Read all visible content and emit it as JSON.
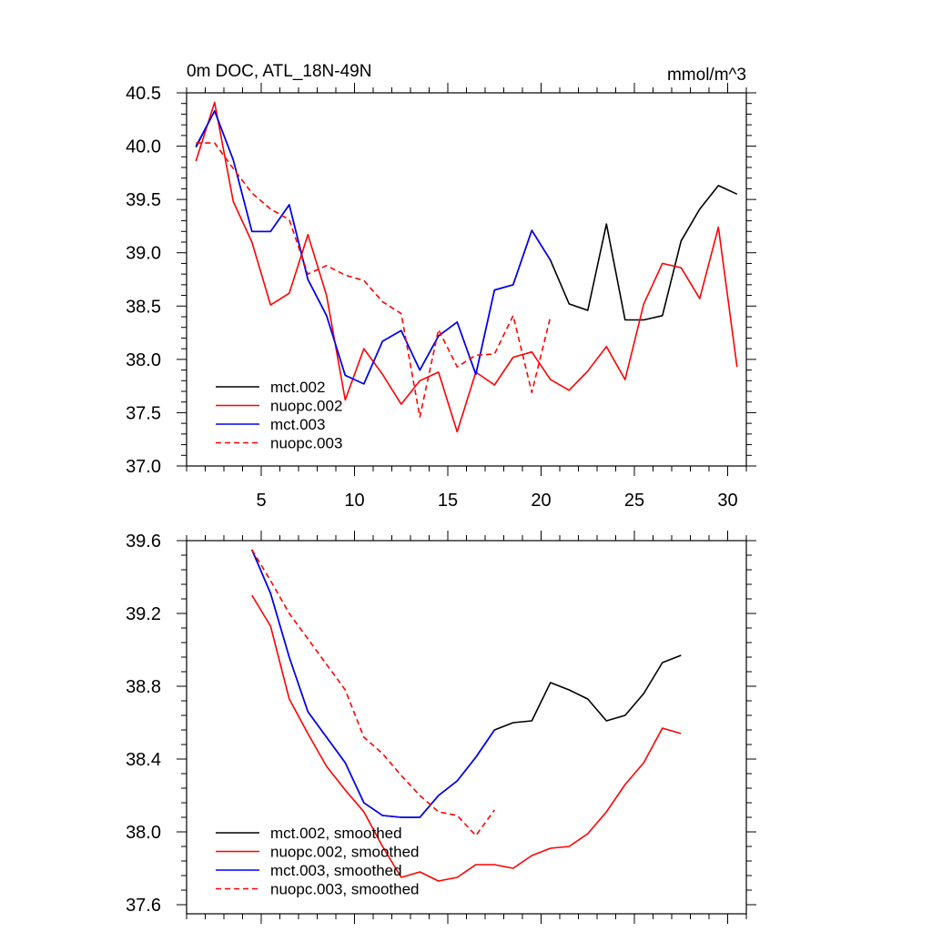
{
  "colors": {
    "mct002": "#000000",
    "nuopc002": "#ff0000",
    "mct003": "#0000ff",
    "nuopc003": "#ff0000"
  },
  "chart_data": [
    {
      "type": "line",
      "title": "0m DOC, ATL_18N-49N",
      "units": "mmol/m^3",
      "xlim": [
        1,
        31
      ],
      "ylim": [
        37.0,
        40.5
      ],
      "xticks": [
        5,
        10,
        15,
        20,
        25,
        30
      ],
      "xtick_labels": [
        "5",
        "10",
        "15",
        "20",
        "25",
        "30"
      ],
      "yticks": [
        37.0,
        37.5,
        38.0,
        38.5,
        39.0,
        39.5,
        40.0,
        40.5
      ],
      "ytick_labels": [
        "37.0",
        "37.5",
        "38.0",
        "38.5",
        "39.0",
        "39.5",
        "40.0",
        "40.5"
      ],
      "legend_position": "bottom-left",
      "series": [
        {
          "name": "mct.002",
          "color": "#000000",
          "dash": false,
          "x": [
            1.5,
            2.5,
            3.5,
            4.5,
            5.5,
            6.5,
            7.5,
            8.5,
            9.5,
            10.5,
            11.5,
            12.5,
            13.5,
            14.5,
            15.5,
            16.5,
            17.5,
            18.5,
            19.5,
            20.5,
            21.5,
            22.5,
            23.5,
            24.5,
            25.5,
            26.5,
            27.5,
            28.5,
            29.5,
            30.5
          ],
          "values": [
            39.99,
            40.33,
            39.87,
            39.2,
            39.2,
            39.45,
            38.75,
            38.41,
            37.85,
            37.77,
            38.17,
            38.27,
            37.9,
            38.22,
            38.35,
            37.86,
            38.65,
            38.7,
            39.21,
            38.93,
            38.52,
            38.46,
            39.27,
            38.37,
            38.37,
            38.41,
            39.11,
            39.41,
            39.63,
            39.55
          ]
        },
        {
          "name": "nuopc.002",
          "color": "#ff0000",
          "dash": false,
          "x": [
            1.5,
            2.5,
            3.5,
            4.5,
            5.5,
            6.5,
            7.5,
            8.5,
            9.5,
            10.5,
            11.5,
            12.5,
            13.5,
            14.5,
            15.5,
            16.5,
            17.5,
            18.5,
            19.5,
            20.5,
            21.5,
            22.5,
            23.5,
            24.5,
            25.5,
            26.5,
            27.5,
            28.5,
            29.5,
            30.5
          ],
          "values": [
            39.86,
            40.41,
            39.48,
            39.1,
            38.51,
            38.62,
            39.17,
            38.6,
            37.62,
            38.1,
            37.86,
            37.58,
            37.8,
            37.88,
            37.32,
            37.88,
            37.76,
            38.02,
            38.07,
            37.81,
            37.71,
            37.89,
            38.12,
            37.81,
            38.52,
            38.9,
            38.86,
            38.57,
            39.24,
            37.93
          ]
        },
        {
          "name": "mct.003",
          "color": "#0000ff",
          "dash": false,
          "x": [
            1.5,
            2.5,
            3.5,
            4.5,
            5.5,
            6.5,
            7.5,
            8.5,
            9.5,
            10.5,
            11.5,
            12.5,
            13.5,
            14.5,
            15.5,
            16.5,
            17.5,
            18.5,
            19.5,
            20.5
          ],
          "values": [
            40.0,
            40.33,
            39.87,
            39.2,
            39.2,
            39.45,
            38.75,
            38.41,
            37.85,
            37.77,
            38.17,
            38.27,
            37.9,
            38.22,
            38.35,
            37.86,
            38.65,
            38.7,
            39.21,
            38.93
          ]
        },
        {
          "name": "nuopc.003",
          "color": "#ff0000",
          "dash": true,
          "x": [
            1.5,
            2.5,
            3.5,
            4.5,
            5.5,
            6.5,
            7.5,
            8.5,
            9.5,
            10.5,
            11.5,
            12.5,
            13.5,
            14.5,
            15.5,
            16.5,
            17.5,
            18.5,
            19.5,
            20.5
          ],
          "values": [
            40.03,
            40.03,
            39.79,
            39.56,
            39.41,
            39.31,
            38.8,
            38.88,
            38.79,
            38.74,
            38.54,
            38.43,
            37.46,
            38.28,
            37.93,
            38.04,
            38.05,
            38.41,
            37.69,
            38.4
          ]
        }
      ]
    },
    {
      "type": "line",
      "title": "",
      "xlim": [
        1,
        31
      ],
      "ylim": [
        37.55,
        39.6
      ],
      "xticks": [
        5,
        10,
        15,
        20,
        25,
        30
      ],
      "xtick_labels": [],
      "yticks": [
        37.6,
        38.0,
        38.4,
        38.8,
        39.2,
        39.6
      ],
      "ytick_labels": [
        "37.6",
        "38.0",
        "38.4",
        "38.8",
        "39.2",
        "39.6"
      ],
      "legend_position": "bottom-left",
      "series": [
        {
          "name": "mct.002, smoothed",
          "color": "#000000",
          "dash": false,
          "x": [
            4.5,
            5.5,
            6.5,
            7.5,
            8.5,
            9.5,
            10.5,
            11.5,
            12.5,
            13.5,
            14.5,
            15.5,
            16.5,
            17.5,
            18.5,
            19.5,
            20.5,
            21.5,
            22.5,
            23.5,
            24.5,
            25.5,
            26.5,
            27.5
          ],
          "values": [
            39.55,
            39.31,
            38.96,
            38.66,
            38.52,
            38.38,
            38.16,
            38.09,
            38.08,
            38.08,
            38.2,
            38.28,
            38.41,
            38.56,
            38.6,
            38.61,
            38.82,
            38.78,
            38.73,
            38.61,
            38.64,
            38.76,
            38.93,
            38.97
          ]
        },
        {
          "name": "nuopc.002, smoothed",
          "color": "#ff0000",
          "dash": false,
          "x": [
            4.5,
            5.5,
            6.5,
            7.5,
            8.5,
            9.5,
            10.5,
            11.5,
            12.5,
            13.5,
            14.5,
            15.5,
            16.5,
            17.5,
            18.5,
            19.5,
            20.5,
            21.5,
            22.5,
            23.5,
            24.5,
            25.5,
            26.5,
            27.5
          ],
          "values": [
            39.3,
            39.13,
            38.73,
            38.54,
            38.36,
            38.23,
            38.11,
            37.92,
            37.75,
            37.78,
            37.73,
            37.75,
            37.82,
            37.82,
            37.8,
            37.87,
            37.91,
            37.92,
            37.99,
            38.11,
            38.26,
            38.38,
            38.57,
            38.54
          ]
        },
        {
          "name": "mct.003, smoothed",
          "color": "#0000ff",
          "dash": false,
          "x": [
            4.5,
            5.5,
            6.5,
            7.5,
            8.5,
            9.5,
            10.5,
            11.5,
            12.5,
            13.5,
            14.5,
            15.5,
            16.5,
            17.5
          ],
          "values": [
            39.55,
            39.31,
            38.96,
            38.66,
            38.52,
            38.38,
            38.16,
            38.09,
            38.08,
            38.08,
            38.2,
            38.28,
            38.41,
            38.56
          ]
        },
        {
          "name": "nuopc.003, smoothed",
          "color": "#ff0000",
          "dash": true,
          "x": [
            4.5,
            5.5,
            6.5,
            7.5,
            8.5,
            9.5,
            10.5,
            11.5,
            12.5,
            13.5,
            14.5,
            15.5,
            16.5,
            17.5
          ],
          "values": [
            39.55,
            39.38,
            39.2,
            39.06,
            38.92,
            38.78,
            38.52,
            38.43,
            38.31,
            38.2,
            38.11,
            38.09,
            37.98,
            38.12
          ]
        }
      ]
    }
  ]
}
